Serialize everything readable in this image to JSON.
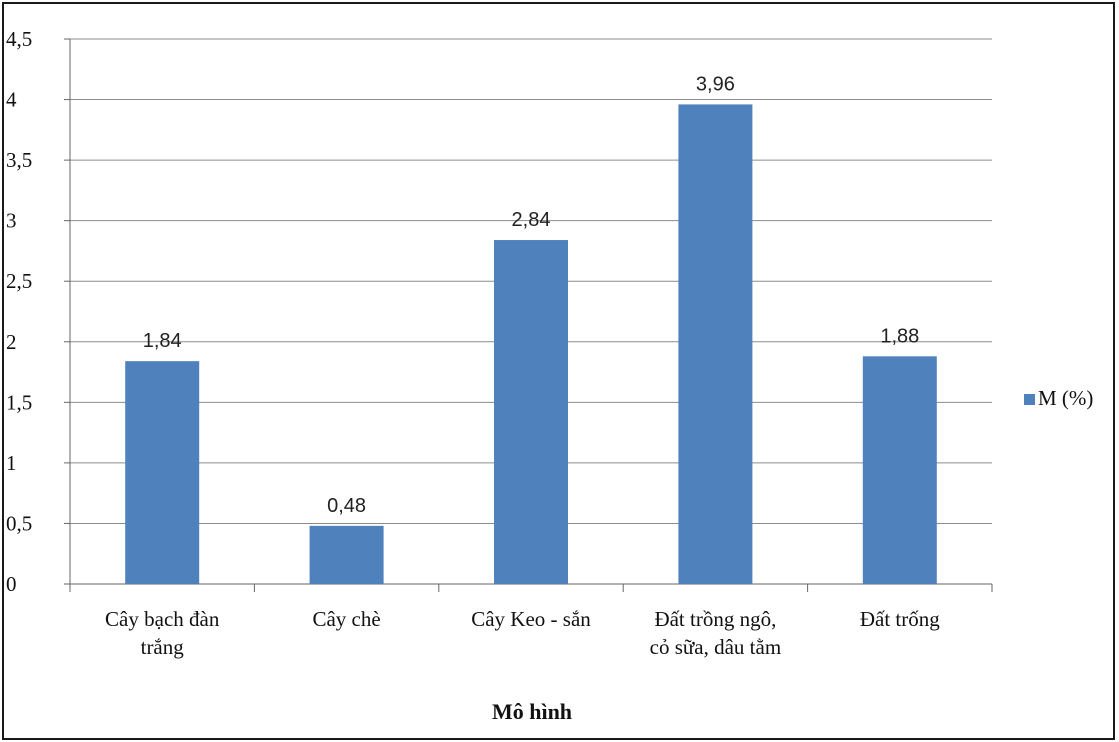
{
  "chart_data": {
    "type": "bar",
    "title": "",
    "xlabel": "Mô hình",
    "ylabel": "",
    "categories": [
      [
        "Cây bạch đàn",
        "trắng"
      ],
      [
        "Cây chè"
      ],
      [
        "Cây Keo - sắn"
      ],
      [
        "Đất trồng ngô,",
        "cỏ sữa, dâu tằm"
      ],
      [
        "Đất trống"
      ]
    ],
    "series": [
      {
        "name": "M (%)",
        "values": [
          1.84,
          0.48,
          2.84,
          3.96,
          1.88
        ],
        "labels": [
          "1,84",
          "0,48",
          "2,84",
          "3,96",
          "1,88"
        ],
        "color": "#4F81BD"
      }
    ],
    "ylim": [
      0,
      4.5
    ],
    "yticks": [
      0,
      0.5,
      1,
      1.5,
      2,
      2.5,
      3,
      3.5,
      4,
      4.5
    ],
    "ytick_labels": [
      "0",
      "0,5",
      "1",
      "1,5",
      "2",
      "2,5",
      "3",
      "3,5",
      "4",
      "4,5"
    ],
    "grid": true,
    "legend_position": "right"
  }
}
